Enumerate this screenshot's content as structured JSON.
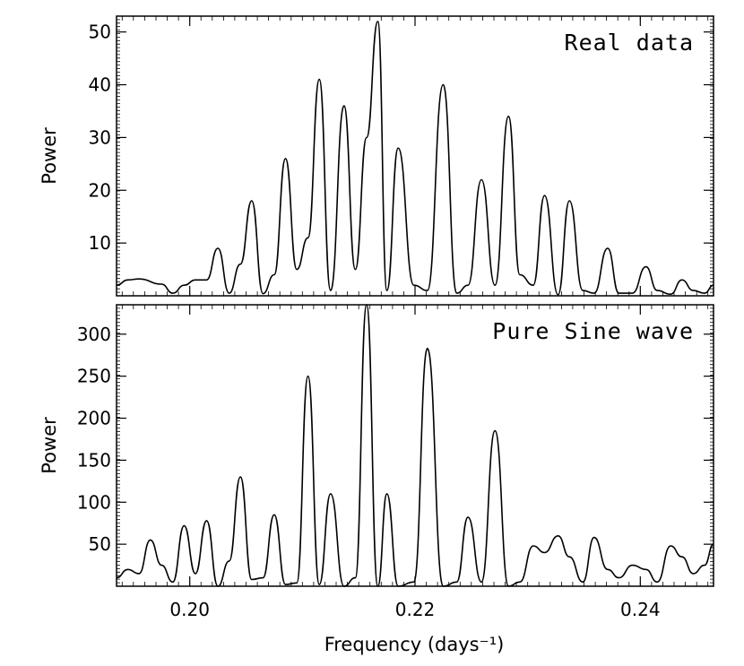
{
  "chart_data": [
    {
      "type": "line",
      "panel": "top",
      "annotation": "Real data",
      "ylabel": "Power",
      "xlabel": "",
      "xlim": [
        0.1935,
        0.2465
      ],
      "ylim": [
        0,
        53
      ],
      "yticks": [
        10,
        20,
        30,
        40,
        50
      ],
      "ytick_labels": [
        "10",
        "20",
        "30",
        "40",
        "50"
      ],
      "x": [
        0.1935,
        0.1945,
        0.1955,
        0.1975,
        0.1985,
        0.1995,
        0.2005,
        0.2015,
        0.2025,
        0.2035,
        0.2045,
        0.2055,
        0.2065,
        0.2075,
        0.2085,
        0.2095,
        0.2105,
        0.2115,
        0.2125,
        0.2137,
        0.2147,
        0.2157,
        0.2167,
        0.2175,
        0.2185,
        0.2199,
        0.2211,
        0.2225,
        0.2237,
        0.2247,
        0.2259,
        0.2271,
        0.2283,
        0.2293,
        0.2305,
        0.2315,
        0.2327,
        0.2337,
        0.2349,
        0.2359,
        0.2371,
        0.2381,
        0.2393,
        0.2405,
        0.2415,
        0.2427,
        0.2437,
        0.2447,
        0.2457,
        0.2465
      ],
      "values": [
        2.0,
        3.0,
        3.2,
        2.2,
        0.5,
        2.0,
        3.0,
        3.0,
        9.0,
        0.5,
        6.0,
        18.0,
        0.4,
        4.0,
        26.0,
        5.0,
        11.0,
        41.0,
        1.0,
        36.0,
        5.0,
        30.0,
        52.0,
        1.0,
        28.0,
        2.0,
        1.0,
        40.0,
        0.5,
        2.0,
        22.0,
        2.0,
        34.0,
        4.0,
        2.0,
        19.0,
        0.2,
        18.0,
        1.0,
        0.5,
        9.0,
        0.5,
        0.5,
        5.5,
        1.0,
        0.3,
        3.0,
        1.0,
        0.5,
        2.0
      ]
    },
    {
      "type": "line",
      "panel": "bottom",
      "annotation": "Pure Sine wave",
      "ylabel": "Power",
      "xlabel": "Frequency (days⁻¹)",
      "xlim": [
        0.1935,
        0.2465
      ],
      "ylim": [
        0,
        335
      ],
      "xticks": [
        0.2,
        0.22,
        0.24
      ],
      "xtick_labels": [
        "0.20",
        "0.22",
        "0.24"
      ],
      "yticks": [
        50,
        100,
        150,
        200,
        250,
        300
      ],
      "ytick_labels": [
        "50",
        "100",
        "150",
        "200",
        "250",
        "300"
      ],
      "x": [
        0.1935,
        0.1945,
        0.1955,
        0.1965,
        0.1975,
        0.1985,
        0.1995,
        0.2005,
        0.2015,
        0.2025,
        0.2035,
        0.2045,
        0.2055,
        0.2065,
        0.2075,
        0.2085,
        0.2095,
        0.2105,
        0.2115,
        0.2125,
        0.2137,
        0.2147,
        0.2157,
        0.2167,
        0.2175,
        0.2185,
        0.2199,
        0.2211,
        0.2225,
        0.2237,
        0.2247,
        0.2259,
        0.2271,
        0.2283,
        0.2293,
        0.2305,
        0.2315,
        0.2327,
        0.2337,
        0.2349,
        0.2359,
        0.2371,
        0.2381,
        0.2393,
        0.2405,
        0.2415,
        0.2427,
        0.2437,
        0.2447,
        0.2457,
        0.2465
      ],
      "values": [
        10,
        20,
        15,
        55,
        25,
        5,
        72,
        15,
        78,
        0,
        30,
        130,
        8,
        10,
        85,
        2,
        4,
        250,
        2,
        110,
        0,
        10,
        335,
        0,
        110,
        0,
        5,
        283,
        0,
        5,
        82,
        5,
        185,
        0,
        5,
        48,
        40,
        60,
        35,
        5,
        58,
        20,
        10,
        25,
        20,
        5,
        48,
        35,
        15,
        25,
        50
      ]
    }
  ]
}
